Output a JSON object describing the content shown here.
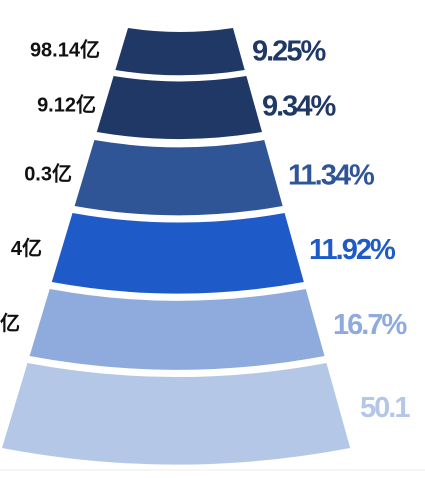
{
  "chart_data": {
    "type": "funnel",
    "categories": [
      "98.14亿",
      "9.12亿",
      "0.3亿",
      "4亿",
      "亿",
      null
    ],
    "values": [
      9.25,
      9.34,
      11.34,
      11.92,
      16.7,
      50.1
    ],
    "value_labels": [
      "9.25%",
      "9.34%",
      "11.34%",
      "11.92%",
      "16.7%",
      "50.1"
    ],
    "colors": [
      "#1f3866",
      "#1f3866",
      "#2f5597",
      "#1f5bc8",
      "#8faadc",
      "#b4c7e7"
    ]
  }
}
